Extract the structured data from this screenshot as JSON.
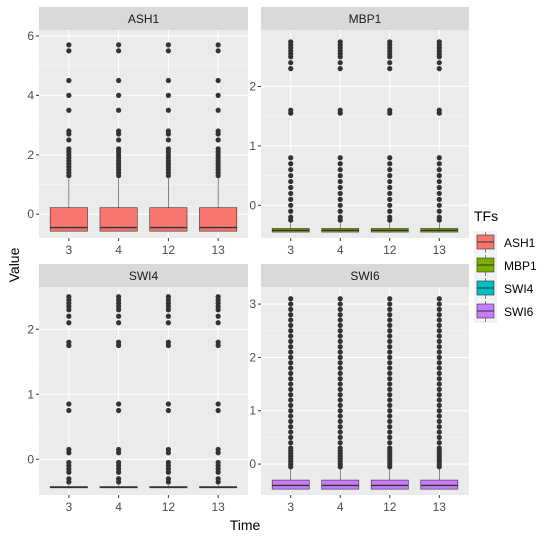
{
  "chart_data": {
    "type": "boxplot",
    "xlabel": "Time",
    "ylabel": "Value",
    "x_categories": [
      "3",
      "4",
      "12",
      "13"
    ],
    "legend": {
      "title": "TFs",
      "position": "right",
      "entries": [
        {
          "name": "ASH1",
          "color": "#F8766D"
        },
        {
          "name": "MBP1",
          "color": "#7CAE00"
        },
        {
          "name": "SWI4",
          "color": "#00BFC4"
        },
        {
          "name": "SWI6",
          "color": "#C77CFF"
        }
      ]
    },
    "grid": true,
    "panels": [
      {
        "title": "ASH1",
        "color": "#F8766D",
        "ylim": [
          -0.8,
          6.2
        ],
        "yticks": [
          0,
          2,
          4,
          6
        ],
        "boxes": [
          {
            "x": "3",
            "q1": -0.57,
            "median": -0.45,
            "q3": 0.22,
            "whisker_low": -0.57,
            "whisker_high": 1.2,
            "outliers": [
              1.3,
              1.4,
              1.5,
              1.6,
              1.7,
              1.8,
              1.9,
              2.0,
              2.1,
              2.2,
              2.5,
              2.7,
              2.8,
              3.5,
              4.0,
              4.5,
              5.5,
              5.7
            ]
          },
          {
            "x": "4",
            "q1": -0.57,
            "median": -0.45,
            "q3": 0.22,
            "whisker_low": -0.57,
            "whisker_high": 1.2,
            "outliers": [
              1.3,
              1.4,
              1.5,
              1.6,
              1.7,
              1.8,
              1.9,
              2.0,
              2.1,
              2.2,
              2.5,
              2.7,
              2.8,
              3.5,
              4.0,
              4.5,
              5.5,
              5.7
            ]
          },
          {
            "x": "12",
            "q1": -0.57,
            "median": -0.45,
            "q3": 0.22,
            "whisker_low": -0.57,
            "whisker_high": 1.2,
            "outliers": [
              1.3,
              1.4,
              1.5,
              1.6,
              1.7,
              1.8,
              1.9,
              2.0,
              2.1,
              2.2,
              2.5,
              2.7,
              2.8,
              3.5,
              4.0,
              4.5,
              5.5,
              5.7
            ]
          },
          {
            "x": "13",
            "q1": -0.57,
            "median": -0.45,
            "q3": 0.22,
            "whisker_low": -0.57,
            "whisker_high": 1.2,
            "outliers": [
              1.3,
              1.4,
              1.5,
              1.6,
              1.7,
              1.8,
              1.9,
              2.0,
              2.1,
              2.2,
              2.5,
              2.7,
              2.8,
              3.5,
              4.0,
              4.5,
              5.5,
              5.7
            ]
          }
        ]
      },
      {
        "title": "MBP1",
        "color": "#7CAE00",
        "ylim": [
          -0.55,
          2.95
        ],
        "yticks": [
          0,
          1,
          2
        ],
        "boxes": [
          {
            "x": "3",
            "q1": -0.45,
            "median": -0.42,
            "q3": -0.39,
            "whisker_low": -0.46,
            "whisker_high": -0.3,
            "outliers": [
              -0.25,
              -0.2,
              -0.1,
              0.0,
              0.1,
              0.2,
              0.3,
              0.4,
              0.5,
              0.6,
              0.7,
              0.8,
              1.55,
              1.6,
              2.3,
              2.4,
              2.5,
              2.55,
              2.6,
              2.65,
              2.7,
              2.75
            ]
          },
          {
            "x": "4",
            "q1": -0.45,
            "median": -0.42,
            "q3": -0.39,
            "whisker_low": -0.46,
            "whisker_high": -0.3,
            "outliers": [
              -0.25,
              -0.2,
              -0.1,
              0.0,
              0.1,
              0.2,
              0.3,
              0.4,
              0.5,
              0.6,
              0.7,
              0.8,
              1.55,
              1.6,
              2.3,
              2.4,
              2.5,
              2.55,
              2.6,
              2.65,
              2.7,
              2.75
            ]
          },
          {
            "x": "12",
            "q1": -0.45,
            "median": -0.42,
            "q3": -0.39,
            "whisker_low": -0.46,
            "whisker_high": -0.3,
            "outliers": [
              -0.25,
              -0.2,
              -0.1,
              0.0,
              0.1,
              0.2,
              0.3,
              0.4,
              0.5,
              0.6,
              0.7,
              0.8,
              1.55,
              1.6,
              2.3,
              2.4,
              2.5,
              2.55,
              2.6,
              2.65,
              2.7,
              2.75
            ]
          },
          {
            "x": "13",
            "q1": -0.45,
            "median": -0.42,
            "q3": -0.39,
            "whisker_low": -0.46,
            "whisker_high": -0.3,
            "outliers": [
              -0.25,
              -0.2,
              -0.1,
              0.0,
              0.1,
              0.2,
              0.3,
              0.4,
              0.5,
              0.6,
              0.7,
              0.8,
              1.55,
              1.6,
              2.3,
              2.4,
              2.5,
              2.55,
              2.6,
              2.65,
              2.7,
              2.75
            ]
          }
        ]
      },
      {
        "title": "SWI4",
        "color": "#00BFC4",
        "ylim": [
          -0.55,
          2.65
        ],
        "yticks": [
          0,
          1,
          2
        ],
        "boxes": [
          {
            "x": "3",
            "q1": -0.44,
            "median": -0.43,
            "q3": -0.42,
            "whisker_low": -0.45,
            "whisker_high": -0.4,
            "outliers": [
              -0.35,
              -0.3,
              -0.2,
              -0.15,
              -0.1,
              -0.05,
              0.1,
              0.15,
              0.75,
              0.85,
              1.75,
              1.8,
              2.1,
              2.2,
              2.3,
              2.35,
              2.4,
              2.45,
              2.5
            ]
          },
          {
            "x": "4",
            "q1": -0.44,
            "median": -0.43,
            "q3": -0.42,
            "whisker_low": -0.45,
            "whisker_high": -0.4,
            "outliers": [
              -0.35,
              -0.3,
              -0.2,
              -0.15,
              -0.1,
              -0.05,
              0.1,
              0.15,
              0.75,
              0.85,
              1.75,
              1.8,
              2.1,
              2.2,
              2.3,
              2.35,
              2.4,
              2.45,
              2.5
            ]
          },
          {
            "x": "12",
            "q1": -0.44,
            "median": -0.43,
            "q3": -0.42,
            "whisker_low": -0.45,
            "whisker_high": -0.4,
            "outliers": [
              -0.35,
              -0.3,
              -0.2,
              -0.15,
              -0.1,
              -0.05,
              0.1,
              0.15,
              0.75,
              0.85,
              1.75,
              1.8,
              2.1,
              2.2,
              2.3,
              2.35,
              2.4,
              2.45,
              2.5
            ]
          },
          {
            "x": "13",
            "q1": -0.44,
            "median": -0.43,
            "q3": -0.42,
            "whisker_low": -0.45,
            "whisker_high": -0.4,
            "outliers": [
              -0.35,
              -0.3,
              -0.2,
              -0.15,
              -0.1,
              -0.05,
              0.1,
              0.15,
              0.75,
              0.85,
              1.75,
              1.8,
              2.1,
              2.2,
              2.3,
              2.35,
              2.4,
              2.45,
              2.5
            ]
          }
        ]
      },
      {
        "title": "SWI6",
        "color": "#C77CFF",
        "ylim": [
          -0.58,
          3.32
        ],
        "yticks": [
          0,
          1,
          2,
          3
        ],
        "boxes": [
          {
            "x": "3",
            "q1": -0.47,
            "median": -0.4,
            "q3": -0.3,
            "whisker_low": -0.48,
            "whisker_high": -0.1,
            "outliers": [
              -0.05,
              0.0,
              0.05,
              0.1,
              0.15,
              0.2,
              0.25,
              0.3,
              0.4,
              0.5,
              0.6,
              0.7,
              0.8,
              0.9,
              1.0,
              1.1,
              1.2,
              1.3,
              1.4,
              1.5,
              1.6,
              1.7,
              1.8,
              1.9,
              2.0,
              2.1,
              2.2,
              2.3,
              2.4,
              2.5,
              2.6,
              2.7,
              2.8,
              2.9,
              3.0,
              3.1
            ]
          },
          {
            "x": "4",
            "q1": -0.47,
            "median": -0.4,
            "q3": -0.3,
            "whisker_low": -0.48,
            "whisker_high": -0.1,
            "outliers": [
              -0.05,
              0.0,
              0.05,
              0.1,
              0.15,
              0.2,
              0.25,
              0.3,
              0.4,
              0.5,
              0.6,
              0.7,
              0.8,
              0.9,
              1.0,
              1.1,
              1.2,
              1.3,
              1.4,
              1.5,
              1.6,
              1.7,
              1.8,
              1.9,
              2.0,
              2.1,
              2.2,
              2.3,
              2.4,
              2.5,
              2.6,
              2.7,
              2.8,
              2.9,
              3.0,
              3.1
            ]
          },
          {
            "x": "12",
            "q1": -0.47,
            "median": -0.4,
            "q3": -0.3,
            "whisker_low": -0.48,
            "whisker_high": -0.1,
            "outliers": [
              -0.05,
              0.0,
              0.05,
              0.1,
              0.15,
              0.2,
              0.25,
              0.3,
              0.4,
              0.5,
              0.6,
              0.7,
              0.8,
              0.9,
              1.0,
              1.1,
              1.2,
              1.3,
              1.4,
              1.5,
              1.6,
              1.7,
              1.8,
              1.9,
              2.0,
              2.1,
              2.2,
              2.3,
              2.4,
              2.5,
              2.6,
              2.7,
              2.8,
              2.9,
              3.0,
              3.1
            ]
          },
          {
            "x": "13",
            "q1": -0.47,
            "median": -0.4,
            "q3": -0.3,
            "whisker_low": -0.48,
            "whisker_high": -0.1,
            "outliers": [
              -0.05,
              0.0,
              0.05,
              0.1,
              0.15,
              0.2,
              0.25,
              0.3,
              0.4,
              0.5,
              0.6,
              0.7,
              0.8,
              0.9,
              1.0,
              1.1,
              1.2,
              1.3,
              1.4,
              1.5,
              1.6,
              1.7,
              1.8,
              1.9,
              2.0,
              2.1,
              2.2,
              2.3,
              2.4,
              2.5,
              2.6,
              2.7,
              2.8,
              2.9,
              3.0,
              3.1
            ]
          }
        ]
      }
    ]
  }
}
